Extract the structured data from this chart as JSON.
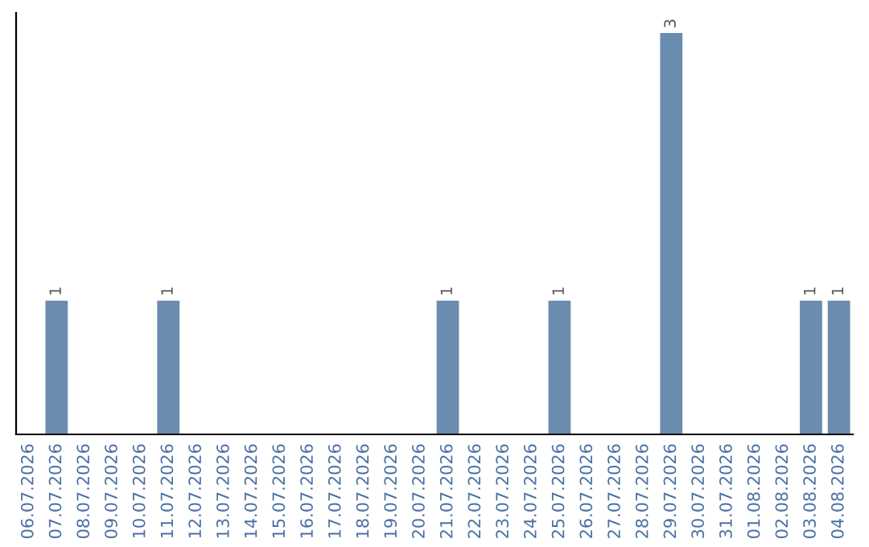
{
  "chart_data": {
    "type": "bar",
    "categories": [
      "06.07.2026",
      "07.07.2026",
      "08.07.2026",
      "09.07.2026",
      "10.07.2026",
      "11.07.2026",
      "12.07.2026",
      "13.07.2026",
      "14.07.2026",
      "15.07.2026",
      "16.07.2026",
      "17.07.2026",
      "18.07.2026",
      "19.07.2026",
      "20.07.2026",
      "21.07.2026",
      "22.07.2026",
      "23.07.2026",
      "24.07.2026",
      "25.07.2026",
      "26.07.2026",
      "27.07.2026",
      "28.07.2026",
      "29.07.2026",
      "30.07.2026",
      "31.07.2026",
      "01.08.2026",
      "02.08.2026",
      "03.08.2026",
      "04.08.2026"
    ],
    "values": [
      0,
      1,
      0,
      0,
      0,
      1,
      0,
      0,
      0,
      0,
      0,
      0,
      0,
      0,
      0,
      1,
      0,
      0,
      0,
      1,
      0,
      0,
      0,
      3,
      0,
      0,
      0,
      0,
      1,
      1
    ],
    "value_labels": [
      null,
      "1",
      null,
      null,
      null,
      "1",
      null,
      null,
      null,
      null,
      null,
      null,
      null,
      null,
      null,
      "1",
      null,
      null,
      null,
      "1",
      null,
      null,
      null,
      "3",
      null,
      null,
      null,
      null,
      "1",
      "1"
    ],
    "color": "#6a8caf",
    "ylim": [
      0,
      3.15
    ],
    "tick_labels": "x",
    "grid": false,
    "legend": false
  }
}
